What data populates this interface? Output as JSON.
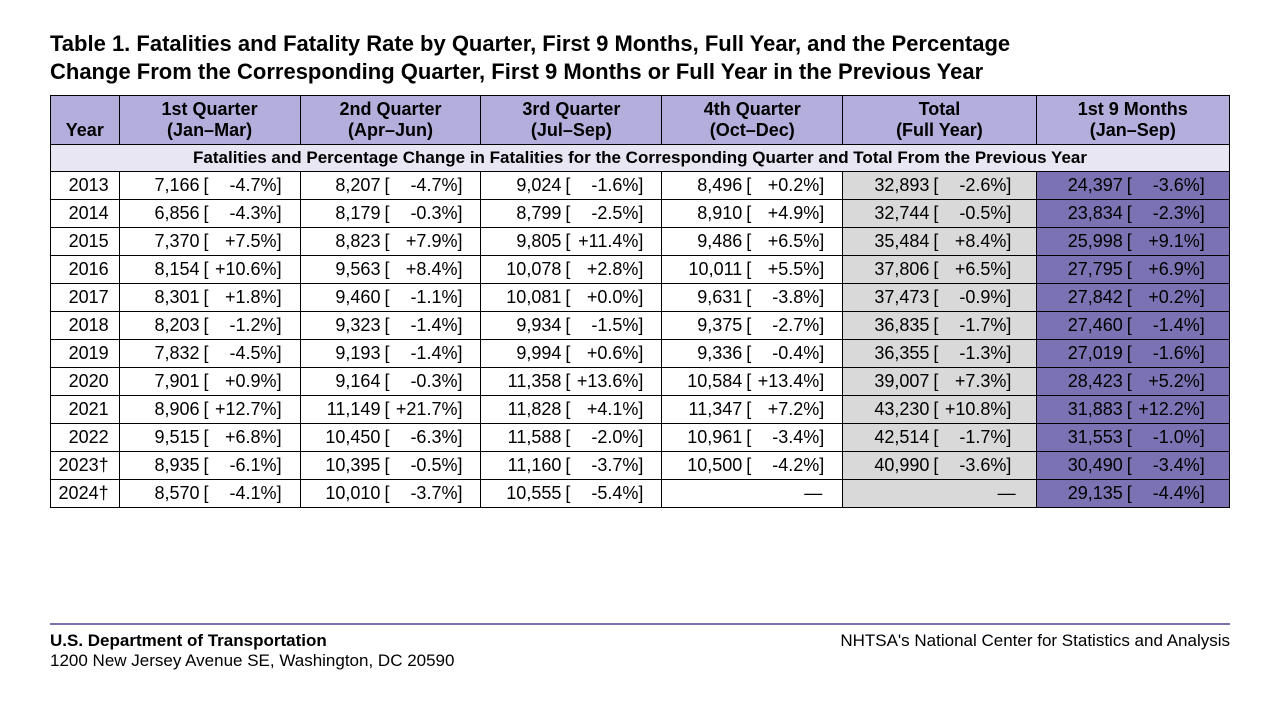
{
  "title_line1": "Table 1. Fatalities and Fatality Rate by Quarter, First 9 Months, Full Year, and the Percentage",
  "title_line2": "Change From the Corresponding Quarter, First 9 Months or Full Year in the Previous Year",
  "columns": {
    "year": "Year",
    "q1_a": "1st Quarter",
    "q1_b": "(Jan–Mar)",
    "q2_a": "2nd Quarter",
    "q2_b": "(Apr–Jun)",
    "q3_a": "3rd Quarter",
    "q3_b": "(Jul–Sep)",
    "q4_a": "4th Quarter",
    "q4_b": "(Oct–Dec)",
    "total_a": "Total",
    "total_b": "(Full Year)",
    "nine_a": "1st 9 Months",
    "nine_b": "(Jan–Sep)"
  },
  "subheader": "Fatalities and Percentage Change in Fatalities for the Corresponding Quarter and Total From the Previous Year",
  "rows": [
    {
      "year": "2013",
      "q1": {
        "n": "7,166",
        "p": "-4.7%"
      },
      "q2": {
        "n": "8,207",
        "p": "-4.7%"
      },
      "q3": {
        "n": "9,024",
        "p": "-1.6%"
      },
      "q4": {
        "n": "8,496",
        "p": "+0.2%"
      },
      "total": {
        "n": "32,893",
        "p": "-2.6%"
      },
      "nine": {
        "n": "24,397",
        "p": "-3.6%"
      }
    },
    {
      "year": "2014",
      "q1": {
        "n": "6,856",
        "p": "-4.3%"
      },
      "q2": {
        "n": "8,179",
        "p": "-0.3%"
      },
      "q3": {
        "n": "8,799",
        "p": "-2.5%"
      },
      "q4": {
        "n": "8,910",
        "p": "+4.9%"
      },
      "total": {
        "n": "32,744",
        "p": "-0.5%"
      },
      "nine": {
        "n": "23,834",
        "p": "-2.3%"
      }
    },
    {
      "year": "2015",
      "q1": {
        "n": "7,370",
        "p": "+7.5%"
      },
      "q2": {
        "n": "8,823",
        "p": "+7.9%"
      },
      "q3": {
        "n": "9,805",
        "p": "+11.4%"
      },
      "q4": {
        "n": "9,486",
        "p": "+6.5%"
      },
      "total": {
        "n": "35,484",
        "p": "+8.4%"
      },
      "nine": {
        "n": "25,998",
        "p": "+9.1%"
      }
    },
    {
      "year": "2016",
      "q1": {
        "n": "8,154",
        "p": "+10.6%"
      },
      "q2": {
        "n": "9,563",
        "p": "+8.4%"
      },
      "q3": {
        "n": "10,078",
        "p": "+2.8%"
      },
      "q4": {
        "n": "10,011",
        "p": "+5.5%"
      },
      "total": {
        "n": "37,806",
        "p": "+6.5%"
      },
      "nine": {
        "n": "27,795",
        "p": "+6.9%"
      }
    },
    {
      "year": "2017",
      "q1": {
        "n": "8,301",
        "p": "+1.8%"
      },
      "q2": {
        "n": "9,460",
        "p": "-1.1%"
      },
      "q3": {
        "n": "10,081",
        "p": "+0.0%"
      },
      "q4": {
        "n": "9,631",
        "p": "-3.8%"
      },
      "total": {
        "n": "37,473",
        "p": "-0.9%"
      },
      "nine": {
        "n": "27,842",
        "p": "+0.2%"
      }
    },
    {
      "year": "2018",
      "q1": {
        "n": "8,203",
        "p": "-1.2%"
      },
      "q2": {
        "n": "9,323",
        "p": "-1.4%"
      },
      "q3": {
        "n": "9,934",
        "p": "-1.5%"
      },
      "q4": {
        "n": "9,375",
        "p": "-2.7%"
      },
      "total": {
        "n": "36,835",
        "p": "-1.7%"
      },
      "nine": {
        "n": "27,460",
        "p": "-1.4%"
      }
    },
    {
      "year": "2019",
      "q1": {
        "n": "7,832",
        "p": "-4.5%"
      },
      "q2": {
        "n": "9,193",
        "p": "-1.4%"
      },
      "q3": {
        "n": "9,994",
        "p": "+0.6%"
      },
      "q4": {
        "n": "9,336",
        "p": "-0.4%"
      },
      "total": {
        "n": "36,355",
        "p": "-1.3%"
      },
      "nine": {
        "n": "27,019",
        "p": "-1.6%"
      }
    },
    {
      "year": "2020",
      "q1": {
        "n": "7,901",
        "p": "+0.9%"
      },
      "q2": {
        "n": "9,164",
        "p": "-0.3%"
      },
      "q3": {
        "n": "11,358",
        "p": "+13.6%"
      },
      "q4": {
        "n": "10,584",
        "p": "+13.4%"
      },
      "total": {
        "n": "39,007",
        "p": "+7.3%"
      },
      "nine": {
        "n": "28,423",
        "p": "+5.2%"
      }
    },
    {
      "year": "2021",
      "q1": {
        "n": "8,906",
        "p": "+12.7%"
      },
      "q2": {
        "n": "11,149",
        "p": "+21.7%"
      },
      "q3": {
        "n": "11,828",
        "p": "+4.1%"
      },
      "q4": {
        "n": "11,347",
        "p": "+7.2%"
      },
      "total": {
        "n": "43,230",
        "p": "+10.8%"
      },
      "nine": {
        "n": "31,883",
        "p": "+12.2%"
      }
    },
    {
      "year": "2022",
      "q1": {
        "n": "9,515",
        "p": "+6.8%"
      },
      "q2": {
        "n": "10,450",
        "p": "-6.3%"
      },
      "q3": {
        "n": "11,588",
        "p": "-2.0%"
      },
      "q4": {
        "n": "10,961",
        "p": "-3.4%"
      },
      "total": {
        "n": "42,514",
        "p": "-1.7%"
      },
      "nine": {
        "n": "31,553",
        "p": "-1.0%"
      }
    },
    {
      "year": "2023†",
      "q1": {
        "n": "8,935",
        "p": "-6.1%"
      },
      "q2": {
        "n": "10,395",
        "p": "-0.5%"
      },
      "q3": {
        "n": "11,160",
        "p": "-3.7%"
      },
      "q4": {
        "n": "10,500",
        "p": "-4.2%"
      },
      "total": {
        "n": "40,990",
        "p": "-3.6%"
      },
      "nine": {
        "n": "30,490",
        "p": "-3.4%"
      }
    },
    {
      "year": "2024†",
      "q1": {
        "n": "8,570",
        "p": "-4.1%"
      },
      "q2": {
        "n": "10,010",
        "p": "-3.7%"
      },
      "q3": {
        "n": "10,555",
        "p": "-5.4%"
      },
      "q4": null,
      "total": null,
      "nine": {
        "n": "29,135",
        "p": "-4.4%"
      }
    }
  ],
  "colors": {
    "header_bg": "#b3aedb",
    "subheader_bg": "#e8e6f3",
    "total_bg": "#d9d9d9",
    "nine_bg": "#7a72b2",
    "rule": "#7a72b2"
  },
  "footer": {
    "dept": "U.S. Department of Transportation",
    "addr": "1200 New Jersey Avenue SE, Washington, DC 20590",
    "right": "NHTSA's National Center for Statistics and Analysis"
  },
  "dash": "—"
}
